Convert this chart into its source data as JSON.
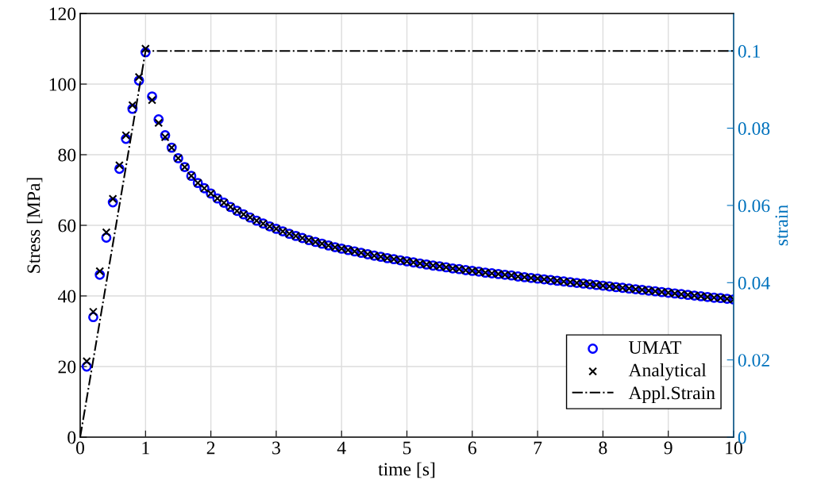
{
  "chart_data": {
    "type": "scatter",
    "xlabel": "time [s]",
    "ylabel": "Stress [MPa]",
    "y2label": "strain",
    "x": [
      0.1,
      0.2,
      0.3,
      0.4,
      0.5,
      0.6,
      0.7,
      0.8,
      0.9,
      1.0,
      1.1,
      1.2,
      1.3,
      1.4,
      1.5,
      1.6,
      1.7,
      1.8,
      1.9,
      2.0,
      2.1,
      2.2,
      2.3,
      2.4,
      2.5,
      2.6,
      2.7,
      2.8,
      2.9,
      3.0,
      3.1,
      3.2,
      3.3,
      3.4,
      3.5,
      3.6,
      3.7,
      3.8,
      3.9,
      4.0,
      4.1,
      4.2,
      4.3,
      4.4,
      4.5,
      4.6,
      4.7,
      4.8,
      4.9,
      5.0,
      5.1,
      5.2,
      5.3,
      5.4,
      5.5,
      5.6,
      5.7,
      5.8,
      5.9,
      6.0,
      6.1,
      6.2,
      6.3,
      6.4,
      6.5,
      6.6,
      6.7,
      6.8,
      6.9,
      7.0,
      7.1,
      7.2,
      7.3,
      7.4,
      7.5,
      7.6,
      7.7,
      7.8,
      7.9,
      8.0,
      8.1,
      8.2,
      8.3,
      8.4,
      8.5,
      8.6,
      8.7,
      8.8,
      8.9,
      9.0,
      9.1,
      9.2,
      9.3,
      9.4,
      9.5,
      9.6,
      9.7,
      9.8,
      9.9,
      10.0
    ],
    "series": [
      {
        "name": "UMAT",
        "marker": "circle",
        "color": "#0000ff",
        "values": [
          20,
          34,
          46,
          56.5,
          66.5,
          76,
          84.5,
          93,
          101,
          109,
          96.5,
          90,
          85.5,
          82,
          79,
          76.5,
          74,
          72,
          70.5,
          69,
          67.6,
          66.4,
          65.2,
          64.1,
          63.1,
          62.2,
          61.3,
          60.5,
          59.7,
          59.0,
          58.3,
          57.6,
          57.0,
          56.4,
          55.8,
          55.3,
          54.8,
          54.3,
          53.8,
          53.4,
          53.0,
          52.6,
          52.2,
          51.8,
          51.4,
          51.1,
          50.7,
          50.4,
          50.1,
          49.8,
          49.5,
          49.2,
          48.9,
          48.6,
          48.4,
          48.1,
          47.8,
          47.6,
          47.3,
          47.1,
          46.9,
          46.6,
          46.4,
          46.2,
          46.0,
          45.8,
          45.5,
          45.3,
          45.1,
          44.9,
          44.7,
          44.5,
          44.3,
          44.1,
          43.9,
          43.7,
          43.5,
          43.3,
          43.1,
          42.9,
          42.7,
          42.5,
          42.3,
          42.1,
          41.9,
          41.7,
          41.5,
          41.3,
          41.1,
          40.9,
          40.7,
          40.5,
          40.3,
          40.1,
          39.9,
          39.7,
          39.5,
          39.4,
          39.2,
          39.0
        ]
      },
      {
        "name": "Analytical",
        "marker": "cross",
        "color": "#000000",
        "values": [
          21.5,
          35.5,
          47,
          58,
          67.5,
          77,
          85.5,
          94,
          102,
          110,
          95.5,
          89,
          85,
          82,
          79,
          76.5,
          74,
          72,
          70.5,
          69,
          67.6,
          66.4,
          65.2,
          64.1,
          63.1,
          62.2,
          61.3,
          60.5,
          59.7,
          59.0,
          58.3,
          57.6,
          57.0,
          56.4,
          55.8,
          55.3,
          54.8,
          54.3,
          53.8,
          53.4,
          53.0,
          52.6,
          52.2,
          51.8,
          51.4,
          51.1,
          50.7,
          50.4,
          50.1,
          49.8,
          49.5,
          49.2,
          48.9,
          48.6,
          48.4,
          48.1,
          47.8,
          47.6,
          47.3,
          47.1,
          46.9,
          46.6,
          46.4,
          46.2,
          46.0,
          45.8,
          45.5,
          45.3,
          45.1,
          44.9,
          44.7,
          44.5,
          44.3,
          44.1,
          43.9,
          43.7,
          43.5,
          43.3,
          43.1,
          42.9,
          42.7,
          42.5,
          42.3,
          42.1,
          41.9,
          41.7,
          41.5,
          41.3,
          41.1,
          40.9,
          40.7,
          40.5,
          40.3,
          40.1,
          39.9,
          39.7,
          39.5,
          39.4,
          39.2,
          39.0
        ]
      },
      {
        "name": "Appl.Strain",
        "type": "line",
        "axis": "y2",
        "line_style": "dashdot",
        "marker": "none",
        "color": "#000000",
        "x": [
          0,
          1,
          10
        ],
        "values": [
          0,
          0.1,
          0.1
        ]
      }
    ],
    "xlim": [
      0,
      10
    ],
    "xticks": [
      0,
      1,
      2,
      3,
      4,
      5,
      6,
      7,
      8,
      9,
      10
    ],
    "ylim": [
      0,
      120
    ],
    "yticks": [
      0,
      20,
      40,
      60,
      80,
      100,
      120
    ],
    "y2lim": [
      0,
      0.1097
    ],
    "y2ticks": [
      0,
      0.02,
      0.04,
      0.06,
      0.08,
      0.1
    ],
    "grid": true,
    "legend": "bottom right"
  }
}
